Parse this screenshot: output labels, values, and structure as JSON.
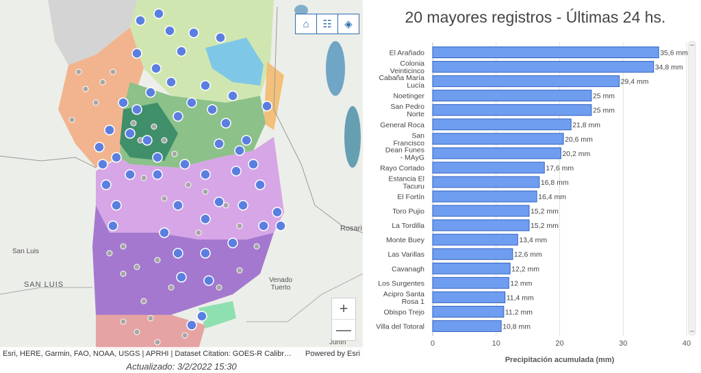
{
  "map": {
    "labels": {
      "san_luis_city": "San Luis",
      "san_luis_province": "SAN LUIS",
      "venado_tuerto": "Venado\nTuerto",
      "rosario": "Rosari",
      "junin": "Junín"
    },
    "tools": [
      {
        "name": "home-icon",
        "glyph": "⌂"
      },
      {
        "name": "legend-icon",
        "glyph": "☷"
      },
      {
        "name": "layers-icon",
        "glyph": "◈"
      }
    ],
    "zoom_in": "+",
    "zoom_out": "—",
    "attribution": "Esri, HERE, Garmin, FAO, NOAA, USGS | APRHI | Dataset Citation: GOES-R Calibrati...",
    "powered_by": "Powered by Esri",
    "updated": "Actualizado: 3/2/2022 15:30",
    "colors": {
      "north_green": "#cfe6b0",
      "mid_green": "#7fb77e",
      "purple": "#c89ad9",
      "dark_purple": "#9b6fc4",
      "orange": "#f2b48e",
      "blue": "#7fc7e6",
      "red": "#e8a0a0",
      "marker": "#5b7fe0"
    }
  },
  "chart_data": {
    "type": "bar",
    "orientation": "horizontal",
    "title": "20 mayores registros - Últimas 24 hs.",
    "xlabel": "Precipitación acumulada (mm)",
    "ylabel": "",
    "xlim": [
      0,
      40
    ],
    "xticks": [
      0,
      10,
      20,
      30,
      40
    ],
    "bar_color": "#6f9ef0",
    "categories": [
      "El Arañado",
      "Colonia Veinticinco",
      "Cabaña María Lucía",
      "Noetinger",
      "San Pedro Norte",
      "General Roca",
      "San Francisco",
      "Dean Funes - MAyG",
      "Rayo Cortado",
      "Estancia El Tacuru",
      "El Fortín",
      "Toro Pujio",
      "La Tordilla",
      "Monte Buey",
      "Las Varillas",
      "Cavanagh",
      "Los Surgentes",
      "Acipro Santa Rosa 1",
      "Obispo Trejo",
      "Villa del Totoral"
    ],
    "values": [
      35.6,
      34.8,
      29.4,
      25,
      25,
      21.8,
      20.6,
      20.2,
      17.6,
      16.8,
      16.4,
      15.2,
      15.2,
      13.4,
      12.6,
      12.2,
      12,
      11.4,
      11.2,
      10.8
    ],
    "value_labels": [
      "35,6 mm",
      "34,8 mm",
      "29,4 mm",
      "25 mm",
      "25 mm",
      "21,8 mm",
      "20,6 mm",
      "20,2 mm",
      "17,6 mm",
      "16,8 mm",
      "16,4 mm",
      "15,2 mm",
      "15,2 mm",
      "13,4 mm",
      "12,6 mm",
      "12,2 mm",
      "12 mm",
      "11,4 mm",
      "11,2 mm",
      "10,8 mm"
    ],
    "tick_labels": [
      "El Arañado",
      "Colonia\nVeinticinco",
      "Cabaña María\nLucía",
      "Noetinger",
      "San Pedro\nNorte",
      "General Roca",
      "San\nFrancisco",
      "Dean Funes\n- MAyG",
      "Rayo Cortado",
      "Estancia El\nTacuru",
      "El Fortín",
      "Toro Pujio",
      "La Tordilla",
      "Monte Buey",
      "Las Varillas",
      "Cavanagh",
      "Los Surgentes",
      "Acipro Santa\nRosa 1",
      "Obispo Trejo",
      "Villa del Totoral"
    ]
  }
}
